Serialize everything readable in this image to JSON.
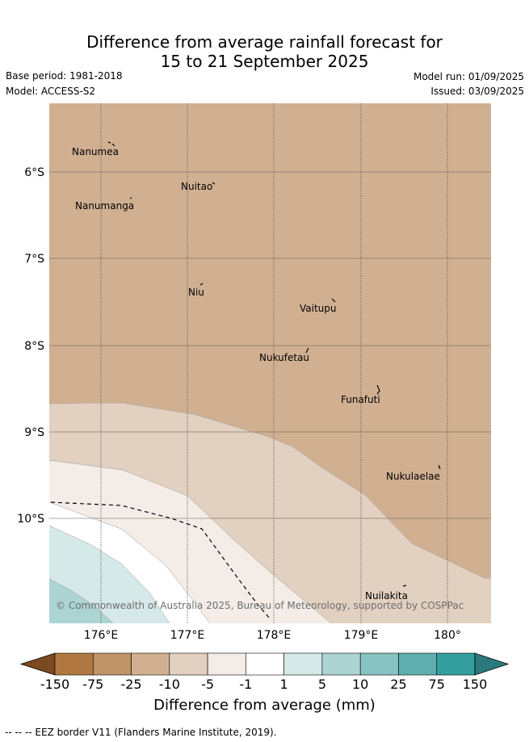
{
  "header": {
    "title_line1": "Difference from average rainfall forecast for",
    "title_line2": "15 to 21 September 2025",
    "base_period": "Base period: 1981-2018",
    "model": "Model: ACCESS-S2",
    "model_run": "Model run: 01/09/2025",
    "issued": "Issued: 03/09/2025"
  },
  "map": {
    "lat_labels": [
      "6°S",
      "7°S",
      "8°S",
      "9°S",
      "10°S"
    ],
    "lon_labels": [
      "176°E",
      "177°E",
      "178°E",
      "179°E",
      "180°"
    ],
    "places": [
      "Nanumea",
      "Nuitao",
      "Nanumanga",
      "Niu",
      "Vaitupu",
      "Nukufetau",
      "Funafuti",
      "Nukulaelae",
      "Nuilakita"
    ],
    "copyright": "© Commonwealth of Australia 2025, Bureau of Meteorology, supported by COSPPac"
  },
  "colorbar": {
    "labels": [
      "-150",
      "-75",
      "-25",
      "-10",
      "-5",
      "-1",
      "1",
      "5",
      "10",
      "25",
      "75",
      "150"
    ],
    "colors": [
      "#7a4a20",
      "#b07840",
      "#c09368",
      "#d1b092",
      "#e2d0c0",
      "#f3ece7",
      "#ffffff",
      "#d5e9e8",
      "#acd4d3",
      "#88c2c1",
      "#5fafaf",
      "#359e9e",
      "#2a7a7c"
    ],
    "title": "Difference from average (mm)"
  },
  "footnote": "--  --  -- EEZ border V11 (Flanders Marine Institute, 2019)."
}
